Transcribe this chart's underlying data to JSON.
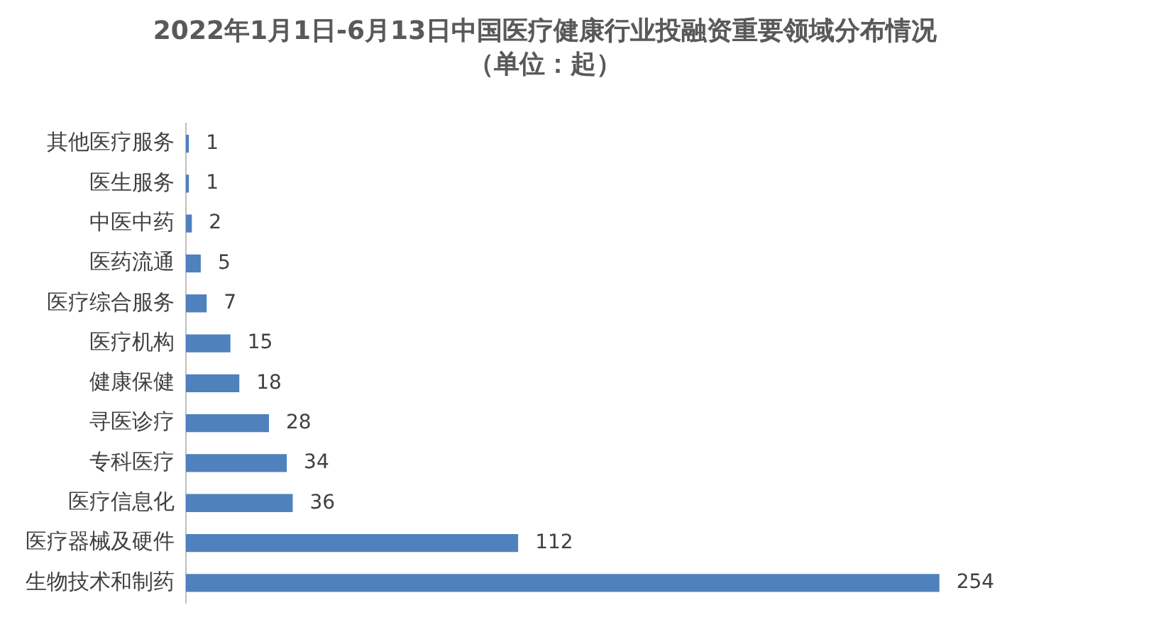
{
  "chart_data": {
    "type": "bar",
    "orientation": "horizontal",
    "title": "2022年1月1日-6月13日中国医疗健康行业投融资重要领域分布情况",
    "subtitle": "（单位：起）",
    "categories": [
      "其他医疗服务",
      "医生服务",
      "中医中药",
      "医药流通",
      "医疗综合服务",
      "医疗机构",
      "健康保健",
      "寻医诊疗",
      "专科医疗",
      "医疗信息化",
      "医疗器械及硬件",
      "生物技术和制药"
    ],
    "values": [
      1,
      1,
      2,
      5,
      7,
      15,
      18,
      28,
      34,
      36,
      112,
      254
    ],
    "color": "#4f81bd",
    "data_labels": true,
    "grid": false,
    "legend": false
  }
}
